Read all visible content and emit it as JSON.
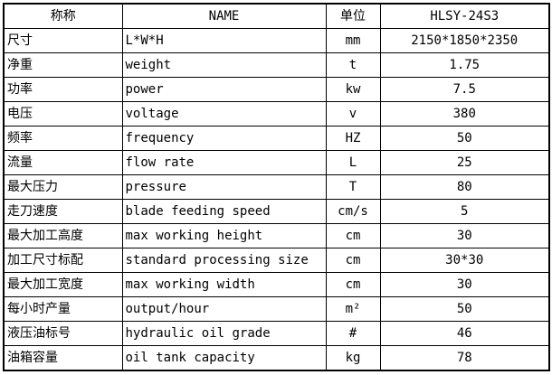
{
  "colors": {
    "background": "#ffffff",
    "border": "#000000",
    "text": "#000000"
  },
  "table": {
    "headers": [
      "称称",
      "NAME",
      "单位",
      "HLSY-24S3"
    ],
    "rows": [
      {
        "cn": "尺寸",
        "en": "L*W*H",
        "unit": "mm",
        "value": "2150*1850*2350"
      },
      {
        "cn": "净重",
        "en": "weight",
        "unit": "t",
        "value": "1.75"
      },
      {
        "cn": "功率",
        "en": "power",
        "unit": "kw",
        "value": "7.5"
      },
      {
        "cn": "电压",
        "en": "voltage",
        "unit": "v",
        "value": "380"
      },
      {
        "cn": "频率",
        "en": "frequency",
        "unit": "HZ",
        "value": "50"
      },
      {
        "cn": "流量",
        "en": "flow rate",
        "unit": "L",
        "value": "25"
      },
      {
        "cn": "最大压力",
        "en": "pressure",
        "unit": "T",
        "value": "80"
      },
      {
        "cn": "走刀速度",
        "en": "blade feeding speed",
        "unit": "cm/s",
        "value": "5"
      },
      {
        "cn": "最大加工高度",
        "en": "max working height",
        "unit": "cm",
        "value": "30"
      },
      {
        "cn": "加工尺寸标配",
        "en": "standard processing size",
        "unit": "cm",
        "value": "30*30"
      },
      {
        "cn": "最大加工宽度",
        "en": "max working width",
        "unit": "cm",
        "value": "30"
      },
      {
        "cn": "每小时产量",
        "en": "output/hour",
        "unit": "m²",
        "value": "50"
      },
      {
        "cn": "液压油标号",
        "en": "hydraulic oil grade",
        "unit": "#",
        "value": "46"
      },
      {
        "cn": "油箱容量",
        "en": "oil tank capacity",
        "unit": "kg",
        "value": "78"
      }
    ]
  }
}
